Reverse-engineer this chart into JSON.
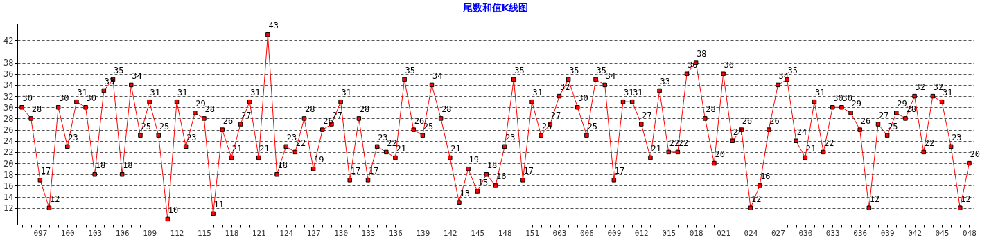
{
  "chart_data": {
    "type": "line",
    "title": "尾数和值K线图",
    "categories": [
      null,
      null,
      "097",
      null,
      null,
      "100",
      null,
      null,
      "103",
      null,
      null,
      "106",
      null,
      null,
      "109",
      null,
      null,
      "112",
      null,
      null,
      "115",
      null,
      null,
      "118",
      null,
      null,
      "121",
      null,
      null,
      "124",
      null,
      null,
      "127",
      null,
      null,
      "130",
      null,
      null,
      "133",
      null,
      null,
      "136",
      null,
      null,
      "139",
      null,
      null,
      "142",
      null,
      null,
      "145",
      null,
      null,
      "148",
      null,
      null,
      "151",
      null,
      null,
      "003",
      null,
      null,
      "006",
      null,
      null,
      "009",
      null,
      null,
      "012",
      null,
      null,
      "015",
      null,
      null,
      "018",
      null,
      null,
      "021",
      null,
      null,
      "024",
      null,
      null,
      "027",
      null,
      null,
      "030",
      null,
      null,
      "033",
      null,
      null,
      "036",
      null,
      null,
      "039",
      null,
      null,
      "042",
      null,
      null,
      "045",
      null,
      null,
      "048"
    ],
    "series": [
      {
        "color": "#ff0000",
        "values": [
          30,
          28,
          17,
          12,
          30,
          23,
          31,
          30,
          18,
          33,
          35,
          18,
          34,
          25,
          31,
          25,
          10,
          31,
          23,
          29,
          28,
          11,
          26,
          21,
          27,
          31,
          21,
          43,
          18,
          23,
          22,
          28,
          19,
          26,
          27,
          31,
          17,
          28,
          17,
          23,
          22,
          21,
          35,
          26,
          25,
          34,
          28,
          21,
          13,
          19,
          15,
          18,
          16,
          23,
          35,
          17,
          31,
          25,
          27,
          32,
          35,
          30,
          25,
          35,
          34,
          17,
          31,
          31,
          27,
          21,
          33,
          22,
          22,
          36,
          38,
          28,
          20,
          36,
          24,
          26,
          12,
          16,
          26,
          34,
          35,
          24,
          21,
          31,
          22,
          30,
          30,
          29,
          26,
          12,
          27,
          25,
          29,
          28,
          32,
          22,
          32,
          31,
          23,
          12,
          20
        ]
      }
    ],
    "ylim": [
      9,
      45
    ],
    "yticks": [
      12,
      14,
      16,
      18,
      20,
      22,
      24,
      26,
      28,
      30,
      32,
      34,
      36,
      38,
      42
    ],
    "grid": "y",
    "marker": "square",
    "line_style": "solid",
    "data_labels": true
  }
}
